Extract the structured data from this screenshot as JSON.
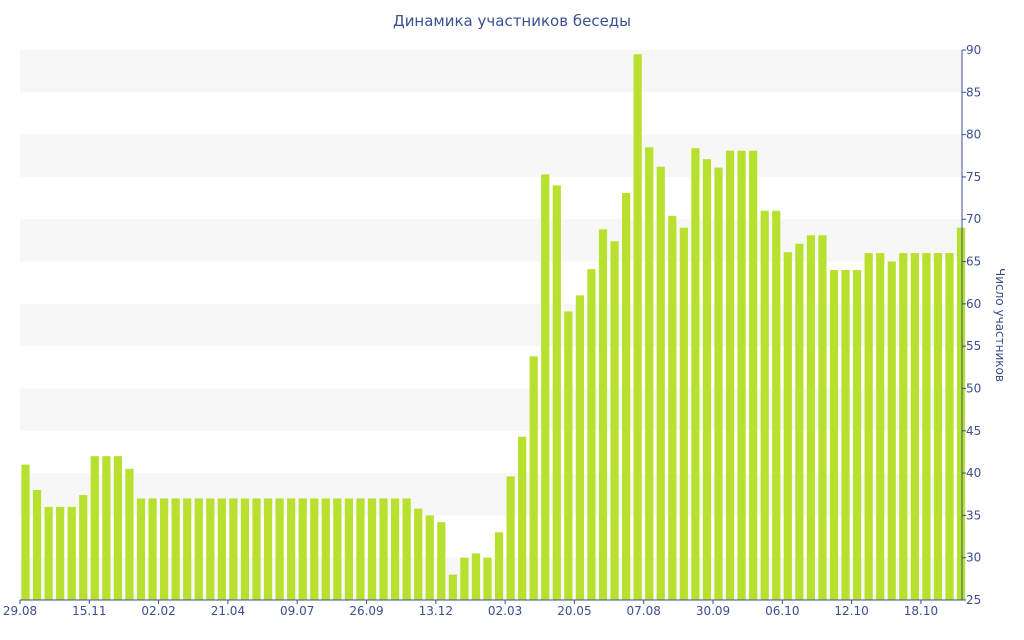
{
  "chart_data": {
    "type": "bar",
    "title": "Динамика участников беседы",
    "xlabel": "",
    "ylabel": "Число участников",
    "ylim": [
      25,
      90
    ],
    "yticks": [
      25,
      30,
      35,
      40,
      45,
      50,
      55,
      60,
      65,
      70,
      75,
      80,
      85,
      90
    ],
    "y_axis_side": "right",
    "grid": "alternating horizontal bands",
    "x_tick_labels": [
      "29.08",
      "15.11",
      "02.02",
      "21.04",
      "09.07",
      "26.09",
      "13.12",
      "02.03",
      "20.05",
      "07.08",
      "30.09",
      "06.10",
      "12.10",
      "18.10"
    ],
    "x_tick_bar_index": [
      0,
      6,
      12,
      18,
      24,
      30,
      36,
      42,
      48,
      54,
      60,
      66,
      72,
      78
    ],
    "bar_color": "#b8e02e",
    "values": [
      41,
      38,
      36,
      36,
      36,
      37.4,
      42,
      42,
      42,
      40.5,
      37,
      37,
      37,
      37,
      37,
      37,
      37,
      37,
      37,
      37,
      37,
      37,
      37,
      37,
      37,
      37,
      37,
      37,
      37,
      37,
      37,
      37,
      37,
      37,
      35.8,
      35,
      34.2,
      28,
      30,
      30.5,
      30,
      33,
      39.6,
      44.3,
      53.8,
      75.3,
      74,
      59.1,
      61,
      64.1,
      68.8,
      67.4,
      73.1,
      89.5,
      78.5,
      76.2,
      70.4,
      69,
      78.4,
      77.1,
      76.1,
      78.1,
      78.1,
      78.1,
      71,
      71,
      66.1,
      67.1,
      68.1,
      68.1,
      64,
      64,
      64,
      66,
      66,
      65,
      66,
      66,
      66,
      66,
      66,
      69
    ]
  },
  "colors": {
    "text": "#3c4f8f",
    "axis": "#3c4f8f",
    "band": "#f7f7f7",
    "bar": "#b8e02e"
  }
}
